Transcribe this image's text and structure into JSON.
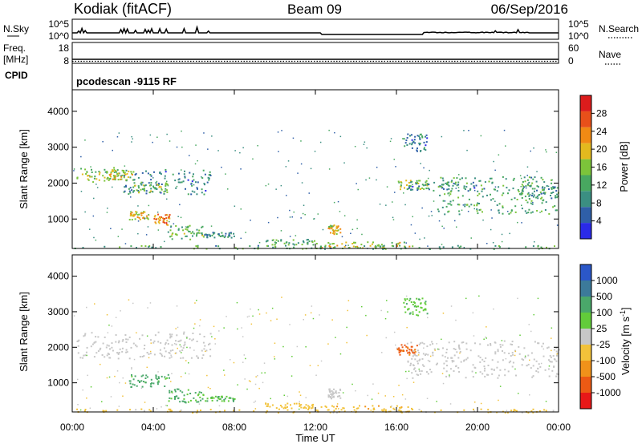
{
  "header": {
    "station": "Kodiak (fitACF)",
    "beam": "Beam 09",
    "date": "06/Sep/2016"
  },
  "noise_panel": {
    "left_label": "N.Sky",
    "left_ticks": [
      "10^5",
      "10^0"
    ],
    "right_label": "N.Search",
    "right_ticks": [
      "10^5",
      "10^0"
    ]
  },
  "freq_panel": {
    "left_label_1": "Freq.",
    "left_label_2": "[MHz]",
    "left_ticks": [
      "18",
      "8"
    ],
    "right_label": "Nave",
    "right_ticks": [
      "60",
      "0"
    ]
  },
  "cpid": {
    "label": "CPID",
    "text": "pcodescan -9115 RF"
  },
  "colors": {
    "power": [
      "#2a2ae8",
      "#2f5fa8",
      "#3b8f82",
      "#48a860",
      "#7cc43a",
      "#e3b91e",
      "#f08a14",
      "#e8501a",
      "#dc1c1c"
    ],
    "velocity": [
      "#e81818",
      "#ec5a14",
      "#f0921a",
      "#f2c23a",
      "#c7c7c7",
      "#62cc3a",
      "#4aa86a",
      "#3c7a9a",
      "#2b57c8"
    ]
  },
  "chart_data": [
    {
      "type": "heatmap",
      "panel": "power",
      "xlabel": "Time UT",
      "ylabel": "Slant Range [km]",
      "x_ticks": [
        "00:00",
        "04:00",
        "08:00",
        "12:00",
        "16:00",
        "20:00",
        "00:00"
      ],
      "x_range_hours": [
        0,
        24
      ],
      "y_ticks": [
        "1000",
        "2000",
        "3000",
        "4000"
      ],
      "y_range_km": [
        180,
        4600
      ],
      "colorbar": {
        "label": "Power [dB]",
        "ticks": [
          "28",
          "24",
          "20",
          "16",
          "12",
          "8",
          "4"
        ],
        "range": [
          0,
          32
        ]
      },
      "echo_regions": [
        {
          "t0": 0.2,
          "t1": 2.5,
          "r0": 2050,
          "r1": 2450,
          "v": 15
        },
        {
          "t0": 1.5,
          "t1": 3.0,
          "r0": 2100,
          "r1": 2400,
          "v": 18
        },
        {
          "t0": 2.5,
          "t1": 6.8,
          "r0": 1700,
          "r1": 2400,
          "v": 8
        },
        {
          "t0": 2.8,
          "t1": 4.8,
          "r0": 1750,
          "r1": 2050,
          "v": 14
        },
        {
          "t0": 2.8,
          "t1": 3.8,
          "r0": 1000,
          "r1": 1250,
          "v": 20
        },
        {
          "t0": 4.0,
          "t1": 4.8,
          "r0": 850,
          "r1": 1150,
          "v": 24
        },
        {
          "t0": 4.7,
          "t1": 6.5,
          "r0": 450,
          "r1": 850,
          "v": 14
        },
        {
          "t0": 6.5,
          "t1": 8.0,
          "r0": 500,
          "r1": 650,
          "v": 9
        },
        {
          "t0": 9.5,
          "t1": 12.0,
          "r0": 300,
          "r1": 450,
          "v": 12
        },
        {
          "t0": 12.6,
          "t1": 13.2,
          "r0": 600,
          "r1": 850,
          "v": 20
        },
        {
          "t0": 12.0,
          "t1": 17.0,
          "r0": 200,
          "r1": 380,
          "v": 18
        },
        {
          "t0": 16.0,
          "t1": 17.5,
          "r0": 1850,
          "r1": 2100,
          "v": 16
        },
        {
          "t0": 16.5,
          "t1": 20.0,
          "r0": 1800,
          "r1": 2050,
          "v": 8
        },
        {
          "t0": 18.0,
          "t1": 23.9,
          "r0": 1150,
          "r1": 2200,
          "v": 12
        },
        {
          "t0": 22.0,
          "t1": 24.0,
          "r0": 1550,
          "r1": 1950,
          "v": 10
        },
        {
          "t0": 16.3,
          "t1": 17.5,
          "r0": 2900,
          "r1": 3400,
          "v": 8
        },
        {
          "t0": 0.0,
          "t1": 24.0,
          "r0": 180,
          "r1": 280,
          "v": 12
        }
      ]
    },
    {
      "type": "heatmap",
      "panel": "velocity",
      "xlabel": "Time UT",
      "ylabel": "Slant Range [km]",
      "x_ticks": [
        "00:00",
        "04:00",
        "08:00",
        "12:00",
        "16:00",
        "20:00",
        "00:00"
      ],
      "x_range_hours": [
        0,
        24
      ],
      "y_ticks": [
        "1000",
        "2000",
        "3000",
        "4000"
      ],
      "y_range_km": [
        180,
        4600
      ],
      "colorbar": {
        "label": "Velocity [m s",
        "label_exponent": "-1",
        "label_close": "]",
        "ticks": [
          "1000",
          "500",
          "100",
          "25",
          "-25",
          "-100",
          "-500",
          "-1000"
        ]
      },
      "echo_regions": [
        {
          "t0": 0.2,
          "t1": 6.8,
          "r0": 1700,
          "r1": 2450,
          "v": 0
        },
        {
          "t0": 2.8,
          "t1": 4.8,
          "r0": 900,
          "r1": 1250,
          "v": 150
        },
        {
          "t0": 4.7,
          "t1": 6.5,
          "r0": 450,
          "r1": 850,
          "v": 120
        },
        {
          "t0": 6.5,
          "t1": 8.0,
          "r0": 500,
          "r1": 650,
          "v": 90
        },
        {
          "t0": 9.5,
          "t1": 12.0,
          "r0": 300,
          "r1": 450,
          "v": -60
        },
        {
          "t0": 12.6,
          "t1": 13.2,
          "r0": 550,
          "r1": 850,
          "v": 0
        },
        {
          "t0": 12.0,
          "t1": 17.0,
          "r0": 200,
          "r1": 380,
          "v": -80
        },
        {
          "t0": 16.0,
          "t1": 17.0,
          "r0": 1800,
          "r1": 2100,
          "v": -700
        },
        {
          "t0": 16.5,
          "t1": 24.0,
          "r0": 1150,
          "r1": 2200,
          "v": 0
        },
        {
          "t0": 16.3,
          "t1": 17.5,
          "r0": 2900,
          "r1": 3400,
          "v": 80
        },
        {
          "t0": 0.0,
          "t1": 24.0,
          "r0": 180,
          "r1": 280,
          "v": -40
        }
      ]
    }
  ]
}
